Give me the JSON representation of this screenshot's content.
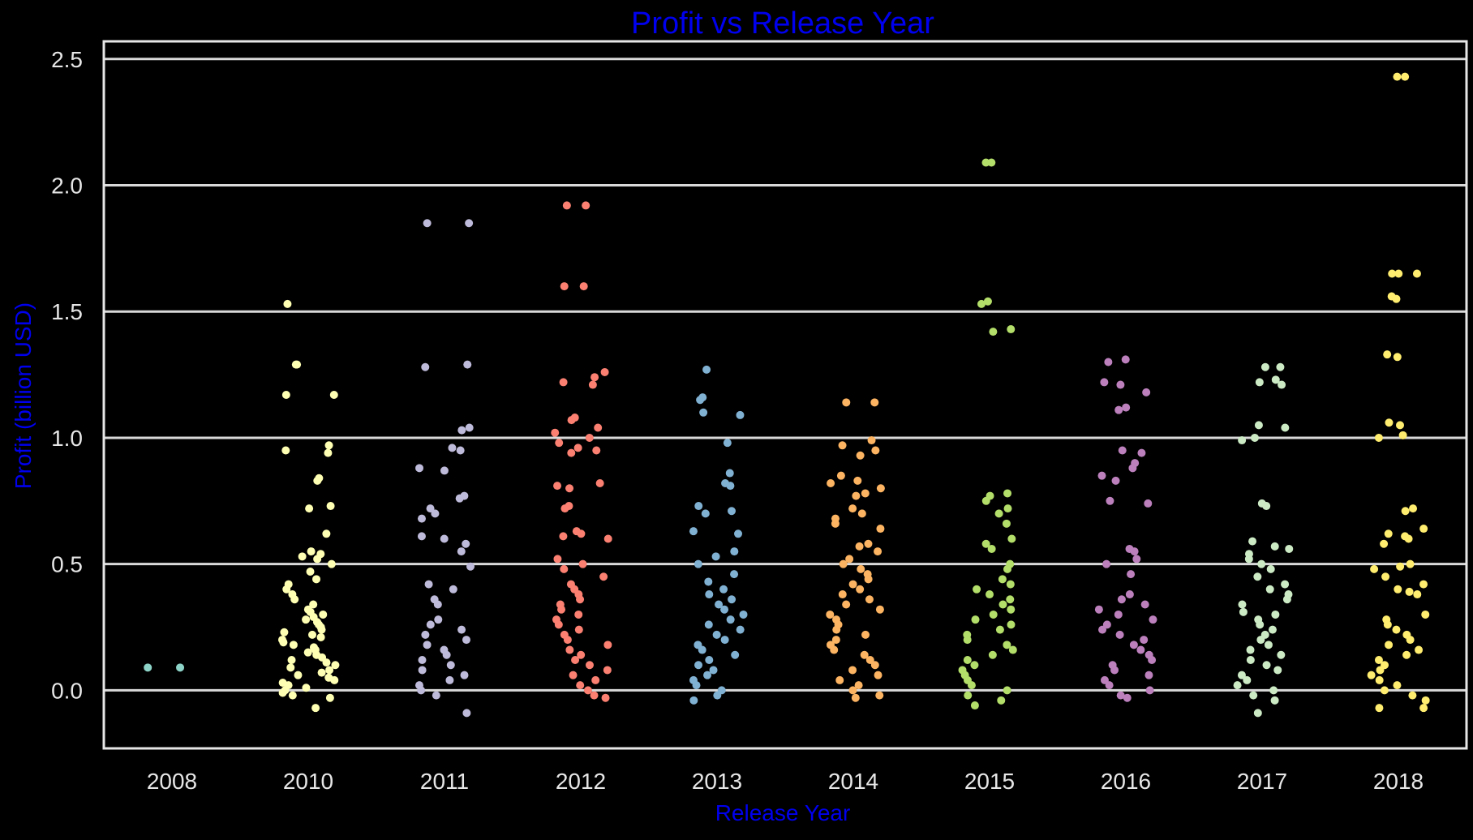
{
  "chart_data": {
    "type": "scatter",
    "title": "Profit vs Release Year",
    "xlabel": "Release Year",
    "ylabel": "Profit (billion USD)",
    "categories": [
      "2008",
      "2010",
      "2011",
      "2012",
      "2013",
      "2014",
      "2015",
      "2016",
      "2017",
      "2018"
    ],
    "ylim": [
      -0.23,
      2.57
    ],
    "yticks": [
      "0.0",
      "0.5",
      "1.0",
      "1.5",
      "2.0",
      "2.5"
    ],
    "grid": "horizontal",
    "series": [
      {
        "category": "2008",
        "color": "#8dd3c7",
        "values": [
          0.09,
          0.09
        ]
      },
      {
        "category": "2010",
        "color": "#ffffb3",
        "values": [
          1.53,
          1.29,
          1.29,
          1.17,
          1.17,
          0.97,
          0.95,
          0.94,
          0.84,
          0.83,
          0.73,
          0.72,
          0.62,
          0.55,
          0.54,
          0.53,
          0.52,
          0.5,
          0.47,
          0.44,
          0.42,
          0.4,
          0.38,
          0.36,
          0.34,
          0.32,
          0.31,
          0.3,
          0.29,
          0.28,
          0.27,
          0.26,
          0.25,
          0.24,
          0.23,
          0.22,
          0.21,
          0.2,
          0.19,
          0.18,
          0.17,
          0.16,
          0.15,
          0.14,
          0.13,
          0.12,
          0.11,
          0.1,
          0.09,
          0.08,
          0.07,
          0.06,
          0.05,
          0.04,
          0.03,
          0.02,
          0.01,
          0.0,
          -0.01,
          -0.02,
          -0.03,
          -0.07
        ]
      },
      {
        "category": "2011",
        "color": "#bebada",
        "values": [
          1.85,
          1.85,
          1.29,
          1.28,
          1.04,
          1.03,
          0.96,
          0.95,
          0.88,
          0.87,
          0.77,
          0.76,
          0.72,
          0.7,
          0.68,
          0.61,
          0.6,
          0.58,
          0.55,
          0.49,
          0.42,
          0.4,
          0.36,
          0.34,
          0.28,
          0.26,
          0.24,
          0.22,
          0.2,
          0.18,
          0.16,
          0.14,
          0.12,
          0.1,
          0.08,
          0.06,
          0.04,
          0.02,
          0.0,
          -0.02,
          -0.09
        ]
      },
      {
        "category": "2012",
        "color": "#fb8072",
        "values": [
          1.92,
          1.92,
          1.6,
          1.6,
          1.26,
          1.24,
          1.22,
          1.21,
          1.08,
          1.07,
          1.04,
          1.02,
          1.0,
          0.98,
          0.96,
          0.95,
          0.94,
          0.82,
          0.81,
          0.8,
          0.73,
          0.72,
          0.63,
          0.62,
          0.61,
          0.6,
          0.52,
          0.5,
          0.48,
          0.45,
          0.42,
          0.4,
          0.38,
          0.36,
          0.34,
          0.32,
          0.3,
          0.28,
          0.26,
          0.24,
          0.22,
          0.2,
          0.18,
          0.16,
          0.14,
          0.12,
          0.1,
          0.08,
          0.06,
          0.04,
          0.02,
          0.0,
          -0.02,
          -0.03
        ]
      },
      {
        "category": "2013",
        "color": "#80b1d3",
        "values": [
          1.27,
          1.16,
          1.15,
          1.1,
          1.09,
          0.98,
          0.86,
          0.82,
          0.81,
          0.73,
          0.71,
          0.7,
          0.63,
          0.62,
          0.55,
          0.53,
          0.5,
          0.46,
          0.43,
          0.4,
          0.38,
          0.36,
          0.34,
          0.32,
          0.3,
          0.28,
          0.26,
          0.24,
          0.22,
          0.2,
          0.18,
          0.16,
          0.14,
          0.12,
          0.1,
          0.08,
          0.06,
          0.04,
          0.02,
          0.0,
          -0.02,
          -0.04
        ]
      },
      {
        "category": "2014",
        "color": "#fdb462",
        "values": [
          1.14,
          1.14,
          0.99,
          0.97,
          0.95,
          0.93,
          0.85,
          0.83,
          0.82,
          0.8,
          0.78,
          0.77,
          0.72,
          0.7,
          0.68,
          0.66,
          0.64,
          0.58,
          0.57,
          0.55,
          0.52,
          0.5,
          0.48,
          0.46,
          0.44,
          0.42,
          0.4,
          0.38,
          0.36,
          0.34,
          0.32,
          0.3,
          0.28,
          0.26,
          0.24,
          0.22,
          0.2,
          0.18,
          0.16,
          0.14,
          0.12,
          0.1,
          0.08,
          0.06,
          0.04,
          0.02,
          0.0,
          -0.02,
          -0.03
        ]
      },
      {
        "category": "2015",
        "color": "#b3de69",
        "values": [
          2.09,
          2.09,
          1.54,
          1.53,
          1.43,
          1.42,
          0.78,
          0.77,
          0.75,
          0.72,
          0.7,
          0.66,
          0.6,
          0.58,
          0.56,
          0.5,
          0.48,
          0.44,
          0.42,
          0.4,
          0.38,
          0.36,
          0.34,
          0.32,
          0.3,
          0.28,
          0.26,
          0.24,
          0.22,
          0.2,
          0.18,
          0.16,
          0.14,
          0.12,
          0.1,
          0.08,
          0.06,
          0.04,
          0.02,
          0.0,
          -0.02,
          -0.04,
          -0.06
        ]
      },
      {
        "category": "2016",
        "color": "#bc80bd",
        "values": [
          1.31,
          1.3,
          1.22,
          1.21,
          1.18,
          1.12,
          1.11,
          0.95,
          0.94,
          0.9,
          0.88,
          0.85,
          0.83,
          0.75,
          0.74,
          0.56,
          0.55,
          0.52,
          0.5,
          0.46,
          0.38,
          0.36,
          0.34,
          0.32,
          0.3,
          0.28,
          0.26,
          0.24,
          0.22,
          0.2,
          0.18,
          0.16,
          0.14,
          0.12,
          0.1,
          0.08,
          0.06,
          0.04,
          0.02,
          0.0,
          -0.02,
          -0.03
        ]
      },
      {
        "category": "2017",
        "color": "#ccebc5",
        "values": [
          1.28,
          1.28,
          1.23,
          1.22,
          1.21,
          1.05,
          1.04,
          1.0,
          0.99,
          0.74,
          0.73,
          0.59,
          0.57,
          0.56,
          0.54,
          0.52,
          0.5,
          0.48,
          0.45,
          0.42,
          0.4,
          0.38,
          0.36,
          0.34,
          0.31,
          0.3,
          0.28,
          0.26,
          0.24,
          0.22,
          0.2,
          0.18,
          0.16,
          0.14,
          0.12,
          0.1,
          0.08,
          0.06,
          0.04,
          0.02,
          0.0,
          -0.02,
          -0.04,
          -0.09
        ]
      },
      {
        "category": "2018",
        "color": "#ffed6f",
        "values": [
          2.43,
          2.43,
          1.65,
          1.65,
          1.65,
          1.56,
          1.55,
          1.33,
          1.32,
          1.06,
          1.05,
          1.01,
          1.0,
          0.72,
          0.71,
          0.64,
          0.62,
          0.61,
          0.6,
          0.58,
          0.5,
          0.49,
          0.48,
          0.45,
          0.42,
          0.4,
          0.39,
          0.38,
          0.3,
          0.28,
          0.26,
          0.24,
          0.22,
          0.2,
          0.18,
          0.16,
          0.14,
          0.12,
          0.1,
          0.08,
          0.06,
          0.04,
          0.02,
          0.0,
          -0.02,
          -0.04,
          -0.07,
          -0.07
        ]
      }
    ]
  }
}
